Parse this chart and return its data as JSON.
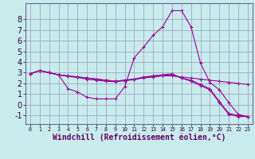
{
  "xlabel": "Windchill (Refroidissement éolien,°C)",
  "background_color": "#c8ecec",
  "line_color": "#990099",
  "grid_color": "#9999bb",
  "x": [
    0,
    1,
    2,
    3,
    4,
    5,
    6,
    7,
    8,
    9,
    10,
    11,
    12,
    13,
    14,
    15,
    16,
    17,
    18,
    19,
    20,
    21,
    22,
    23
  ],
  "s1": [
    2.9,
    3.2,
    3.0,
    2.8,
    2.7,
    2.6,
    2.5,
    2.4,
    2.3,
    2.2,
    2.3,
    2.4,
    2.5,
    2.6,
    2.7,
    2.7,
    2.6,
    2.5,
    2.4,
    2.3,
    2.2,
    2.1,
    2.0,
    1.9
  ],
  "s2": [
    2.9,
    3.2,
    3.0,
    2.8,
    1.5,
    1.2,
    0.7,
    0.55,
    0.55,
    0.55,
    1.7,
    4.4,
    5.4,
    6.5,
    7.3,
    8.8,
    8.8,
    7.3,
    3.9,
    2.1,
    1.4,
    0.2,
    -0.9,
    -1.1
  ],
  "s3": [
    2.9,
    3.2,
    3.0,
    2.8,
    2.7,
    2.6,
    2.5,
    2.4,
    2.3,
    2.2,
    2.3,
    2.4,
    2.6,
    2.7,
    2.8,
    2.9,
    2.5,
    2.3,
    1.9,
    1.5,
    0.3,
    -0.8,
    -1.0,
    -1.1
  ],
  "s4": [
    2.9,
    3.2,
    3.0,
    2.8,
    2.65,
    2.55,
    2.4,
    2.3,
    2.2,
    2.15,
    2.25,
    2.35,
    2.55,
    2.65,
    2.75,
    2.8,
    2.5,
    2.2,
    1.8,
    1.4,
    0.2,
    -0.9,
    -1.1,
    -1.1
  ],
  "ylim": [
    -1.8,
    9.5
  ],
  "xlim": [
    -0.5,
    23.5
  ],
  "yticks": [
    -1,
    0,
    1,
    2,
    3,
    4,
    5,
    6,
    7,
    8
  ],
  "xticks": [
    0,
    1,
    2,
    3,
    4,
    5,
    6,
    7,
    8,
    9,
    10,
    11,
    12,
    13,
    14,
    15,
    16,
    17,
    18,
    19,
    20,
    21,
    22,
    23
  ],
  "tick_fontsize_y": 7,
  "tick_fontsize_x": 4.8,
  "label_fontsize": 7,
  "label_color": "#660066",
  "spine_color": "#666699"
}
